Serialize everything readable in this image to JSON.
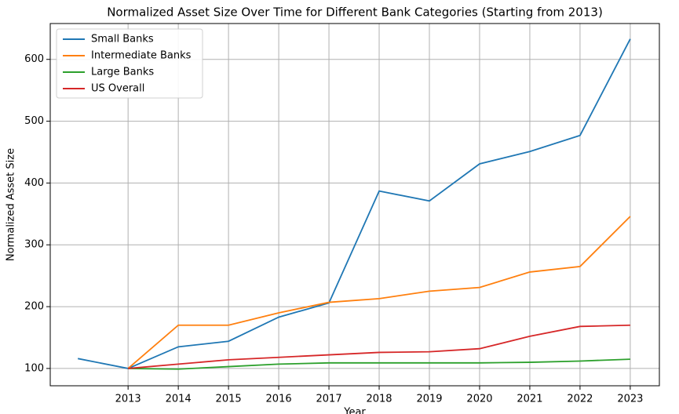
{
  "chart_data": {
    "type": "line",
    "title": "Normalized Asset Size Over Time for Different Bank Categories (Starting from 2013)",
    "xlabel": "Year",
    "ylabel": "Normalized Asset Size",
    "x": [
      2012,
      2013,
      2014,
      2015,
      2016,
      2017,
      2018,
      2019,
      2020,
      2021,
      2022,
      2023
    ],
    "series": [
      {
        "name": "Small Banks",
        "color": "#1f77b4",
        "values": [
          116,
          100,
          135,
          144,
          183,
          206,
          387,
          371,
          431,
          451,
          477,
          633
        ]
      },
      {
        "name": "Intermediate Banks",
        "color": "#ff7f0e",
        "values": [
          null,
          100,
          170,
          170,
          190,
          207,
          213,
          225,
          231,
          256,
          265,
          346
        ]
      },
      {
        "name": "Large Banks",
        "color": "#2ca02c",
        "values": [
          null,
          100,
          99,
          103,
          107,
          109,
          109,
          109,
          109,
          110,
          112,
          115
        ]
      },
      {
        "name": "US Overall",
        "color": "#d62728",
        "values": [
          null,
          100,
          107,
          114,
          118,
          122,
          126,
          127,
          132,
          152,
          168,
          170
        ]
      }
    ],
    "xlim": [
      2011.45,
      2023.58
    ],
    "xticks": [
      2013,
      2014,
      2015,
      2016,
      2017,
      2018,
      2019,
      2020,
      2021,
      2022,
      2023
    ],
    "ylim": [
      72,
      658
    ],
    "yticks": [
      100,
      200,
      300,
      400,
      500,
      600
    ],
    "grid": true,
    "legend": "upper left"
  }
}
